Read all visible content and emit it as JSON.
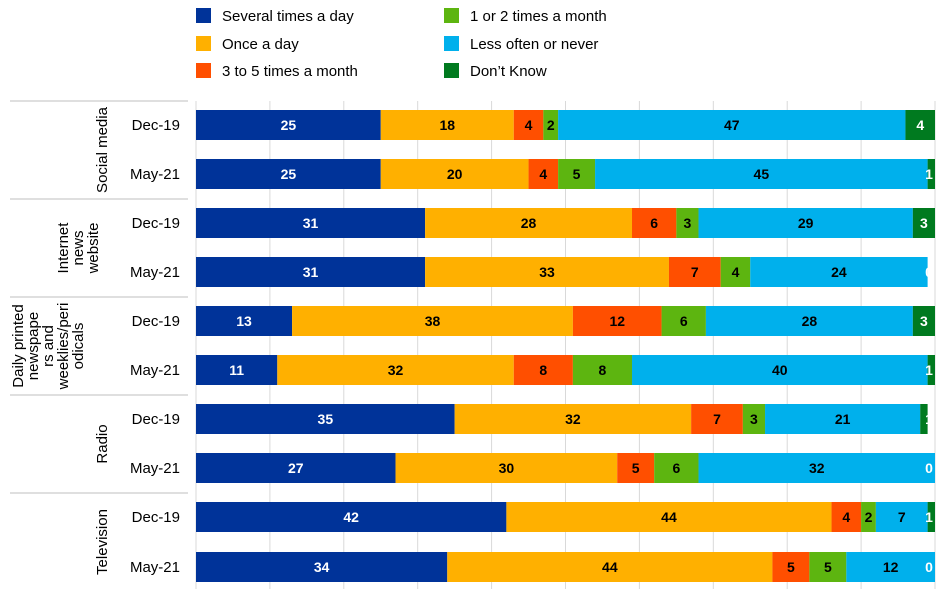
{
  "chart_data": {
    "type": "bar",
    "orientation": "horizontal",
    "stacked": true,
    "xlim": [
      0,
      100
    ],
    "grid": "vertical",
    "legend_position": "top",
    "series": [
      {
        "name": "Several times a day",
        "color": "#003399"
      },
      {
        "name": "Once a day",
        "color": "#FFB000"
      },
      {
        "name": "3 to 5 times a month",
        "color": "#FF4F00"
      },
      {
        "name": "1 or 2 times a month",
        "color": "#5DB510"
      },
      {
        "name": "Less often or never",
        "color": "#00B0EC"
      },
      {
        "name": "Don’t Know",
        "color": "#007A1F"
      }
    ],
    "groups": [
      {
        "name": "Social media",
        "rows": [
          {
            "label": "Dec-19",
            "values": [
              25,
              18,
              4,
              2,
              47,
              4
            ]
          },
          {
            "label": "May-21",
            "values": [
              25,
              20,
              4,
              5,
              45,
              1
            ]
          }
        ]
      },
      {
        "name": "Internet news website",
        "rows": [
          {
            "label": "Dec-19",
            "values": [
              31,
              28,
              6,
              3,
              29,
              3
            ]
          },
          {
            "label": "May-21",
            "values": [
              31,
              33,
              7,
              4,
              24,
              0
            ]
          }
        ]
      },
      {
        "name": "Daily printed newspapers and weeklies/periodicals",
        "rows": [
          {
            "label": "Dec-19",
            "values": [
              13,
              38,
              12,
              6,
              28,
              3
            ]
          },
          {
            "label": "May-21",
            "values": [
              11,
              32,
              8,
              8,
              40,
              1
            ]
          }
        ]
      },
      {
        "name": "Radio",
        "rows": [
          {
            "label": "Dec-19",
            "values": [
              35,
              32,
              7,
              3,
              21,
              1
            ]
          },
          {
            "label": "May-21",
            "values": [
              27,
              30,
              5,
              6,
              32,
              0
            ]
          }
        ]
      },
      {
        "name": "Television",
        "rows": [
          {
            "label": "Dec-19",
            "values": [
              42,
              44,
              4,
              2,
              7,
              1
            ]
          },
          {
            "label": "May-21",
            "values": [
              34,
              44,
              5,
              5,
              12,
              0
            ]
          }
        ]
      }
    ]
  }
}
